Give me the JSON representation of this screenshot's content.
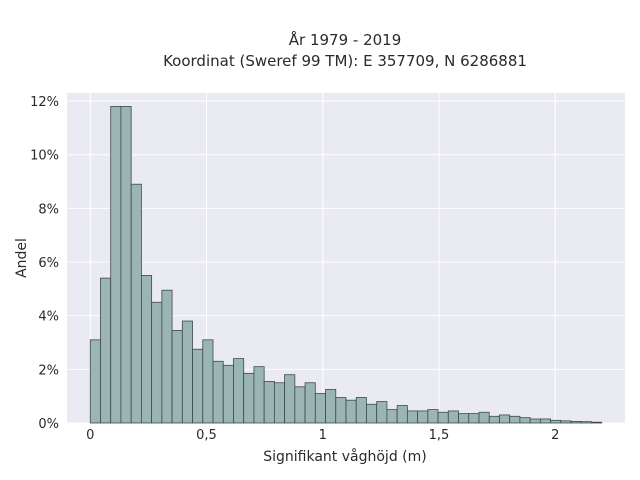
{
  "chart_data": {
    "type": "bar",
    "title_line1": "År 1979 - 2019",
    "title_line2": "Koordinat (Sweref 99 TM): E 357709, N 6286881",
    "xlabel": "Signifikant våghöjd (m)",
    "ylabel": "Andel",
    "xlim": [
      -0.1,
      2.3
    ],
    "ylim": [
      0,
      12.3
    ],
    "x_ticks": [
      {
        "value": 0,
        "label": "0"
      },
      {
        "value": 0.5,
        "label": "0,5"
      },
      {
        "value": 1,
        "label": "1"
      },
      {
        "value": 1.5,
        "label": "1,5"
      },
      {
        "value": 2,
        "label": "2"
      }
    ],
    "y_ticks": [
      {
        "value": 0,
        "label": "0%"
      },
      {
        "value": 2,
        "label": "2%"
      },
      {
        "value": 4,
        "label": "4%"
      },
      {
        "value": 6,
        "label": "6%"
      },
      {
        "value": 8,
        "label": "8%"
      },
      {
        "value": 10,
        "label": "10%"
      },
      {
        "value": 12,
        "label": "12%"
      }
    ],
    "grid": true,
    "bin_start": 0,
    "bin_width": 0.044,
    "values": [
      3.1,
      5.4,
      11.8,
      11.8,
      8.9,
      5.5,
      4.5,
      4.95,
      3.45,
      3.8,
      2.75,
      3.1,
      2.3,
      2.15,
      2.4,
      1.85,
      2.1,
      1.55,
      1.5,
      1.8,
      1.35,
      1.5,
      1.1,
      1.25,
      0.95,
      0.85,
      0.95,
      0.7,
      0.8,
      0.5,
      0.65,
      0.45,
      0.45,
      0.5,
      0.4,
      0.45,
      0.35,
      0.35,
      0.4,
      0.25,
      0.3,
      0.25,
      0.2,
      0.15,
      0.15,
      0.1,
      0.08,
      0.06,
      0.05,
      0.03
    ],
    "colors": {
      "bar_fill": "#9bb5b4",
      "bar_edge": "#3e4a4a",
      "plot_bg": "#eaeaf2",
      "grid": "#ffffff"
    }
  }
}
